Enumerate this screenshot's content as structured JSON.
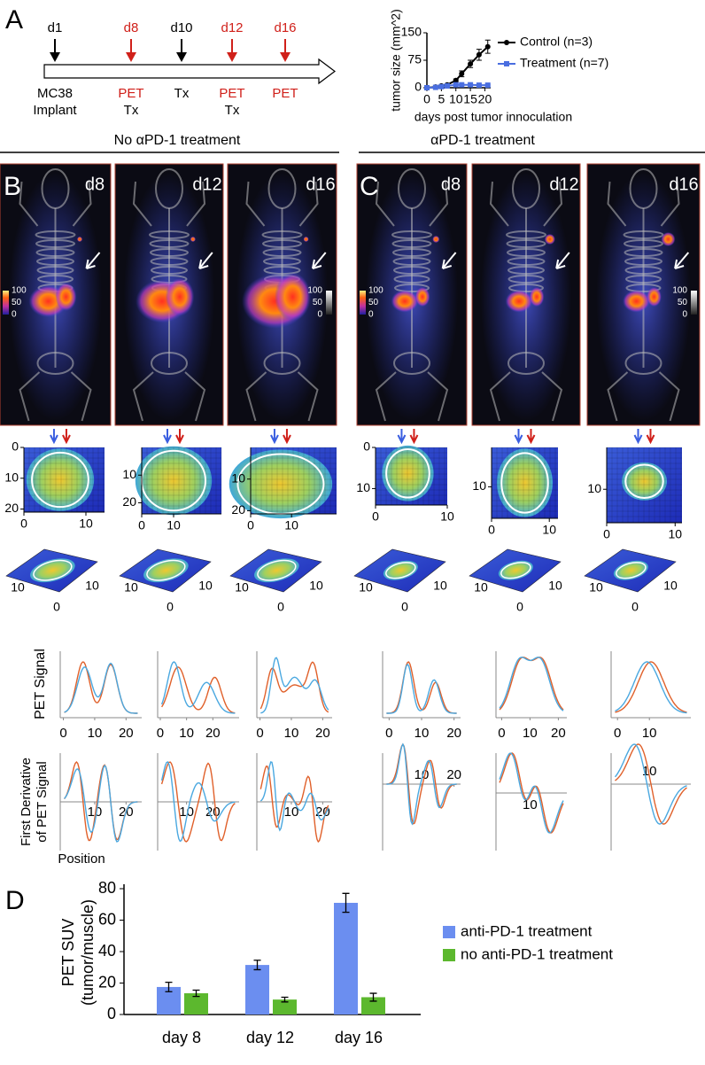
{
  "panel_labels": [
    "A",
    "B",
    "C",
    "D"
  ],
  "timeline": {
    "events": [
      {
        "label": "d1",
        "color": "#000000",
        "below": [
          {
            "text": "MC38",
            "color": "#000000"
          },
          {
            "text": "Implant",
            "color": "#000000"
          }
        ]
      },
      {
        "label": "d8",
        "color": "#d0201a",
        "below": [
          {
            "text": "PET",
            "color": "#d0201a"
          },
          {
            "text": "Tx",
            "color": "#000000"
          }
        ]
      },
      {
        "label": "d10",
        "color": "#000000",
        "below": [
          {
            "text": "Tx",
            "color": "#000000"
          }
        ]
      },
      {
        "label": "d12",
        "color": "#d0201a",
        "below": [
          {
            "text": "PET",
            "color": "#d0201a"
          },
          {
            "text": "Tx",
            "color": "#000000"
          }
        ]
      },
      {
        "label": "d16",
        "color": "#d0201a",
        "below": [
          {
            "text": "PET",
            "color": "#d0201a"
          }
        ]
      }
    ]
  },
  "headers": [
    "No αPD-1 treatment",
    "αPD-1 treatment"
  ],
  "images": {
    "days": [
      "d8",
      "d12",
      "d16"
    ],
    "colorbar_ticks": [
      100,
      50,
      0
    ]
  },
  "surface_ticks": [
    10,
    10,
    0
  ],
  "small_plots": {
    "heatmaps": [
      {
        "xlim": [
          0,
          13
        ],
        "ylim": [
          0,
          21
        ],
        "xticks": [
          0,
          10
        ],
        "yticks": [
          0,
          10,
          20
        ]
      },
      {
        "xlim": [
          0,
          25
        ],
        "ylim": [
          0,
          24
        ],
        "xticks": [
          0,
          10
        ],
        "yticks": [
          10,
          20
        ]
      },
      {
        "xlim": [
          0,
          21
        ],
        "ylim": [
          0,
          21
        ],
        "xticks": [
          0,
          10
        ],
        "yticks": [
          10,
          20
        ]
      },
      {
        "xlim": [
          0,
          10
        ],
        "ylim": [
          0,
          14
        ],
        "xticks": [
          0,
          10
        ],
        "yticks": [
          0,
          10
        ]
      },
      {
        "xlim": [
          0,
          11.5
        ],
        "ylim": [
          0,
          18
        ],
        "xticks": [
          0,
          10
        ],
        "yticks": [
          10
        ]
      },
      {
        "xlim": [
          0,
          11
        ],
        "ylim": [
          0,
          18
        ],
        "xticks": [
          0,
          10
        ],
        "yticks": [
          10
        ]
      }
    ],
    "profiles": [
      {
        "xlim": [
          -1,
          25
        ],
        "xticks": [
          0,
          10,
          20
        ]
      },
      {
        "xlim": [
          -1,
          30
        ],
        "xticks": [
          0,
          10,
          20
        ]
      },
      {
        "xlim": [
          -1,
          23
        ],
        "xticks": [
          0,
          10,
          20
        ]
      },
      {
        "xlim": [
          -2,
          22
        ],
        "xticks": [
          0,
          10,
          20
        ]
      },
      {
        "xlim": [
          -2,
          23
        ],
        "xticks": [
          0,
          10,
          20
        ]
      },
      {
        "xlim": [
          -2,
          23
        ],
        "xticks": [
          0,
          10
        ]
      }
    ],
    "derivatives": [
      {
        "xlim": [
          -1,
          25
        ],
        "xticks": [
          10,
          20
        ]
      },
      {
        "xlim": [
          -1,
          30
        ],
        "xticks": [
          10,
          20
        ]
      },
      {
        "xlim": [
          -1,
          23
        ],
        "xticks": [
          10,
          20
        ]
      },
      {
        "xlim": [
          -2,
          22
        ],
        "xticks": [
          10,
          20
        ]
      },
      {
        "xlim": [
          -2,
          23
        ],
        "xticks": [
          10
        ]
      },
      {
        "xlim": [
          -2,
          23
        ],
        "xticks": [
          10
        ]
      }
    ],
    "profile_ylabel": "PET Signal",
    "derivative_ylabel": [
      "First Derivative",
      "of PET Signal"
    ],
    "derivative_xlabel": "Position"
  },
  "chart_data": [
    {
      "type": "line",
      "ylabel": "tumor size (mm^2)",
      "xlabel": "days post tumor innoculation",
      "x": [
        0,
        3,
        5,
        7,
        10,
        12,
        15,
        18,
        21
      ],
      "series": [
        {
          "name": "Control (n=3)",
          "color": "#000000",
          "values": [
            0,
            2,
            5,
            8,
            20,
            38,
            65,
            90,
            112
          ],
          "errors": [
            0,
            1,
            2,
            3,
            4,
            8,
            10,
            15,
            18
          ]
        },
        {
          "name": "Treatment (n=7)",
          "color": "#4a6ee0",
          "values": [
            0,
            1,
            3,
            5,
            8,
            8,
            8,
            7,
            7
          ],
          "errors": [
            0,
            1,
            1,
            1,
            2,
            2,
            2,
            2,
            2
          ]
        }
      ],
      "xlim": [
        0,
        22
      ],
      "ylim": [
        0,
        150
      ],
      "xticks": [
        0,
        5,
        10,
        15,
        20
      ],
      "yticks": [
        0,
        75,
        150
      ]
    },
    {
      "type": "bar",
      "ylabel": [
        "PET SUV",
        "(tumor/muscle)"
      ],
      "categories": [
        "day 8",
        "day 12",
        "day 16"
      ],
      "series": [
        {
          "name": "anti-PD-1 treatment",
          "color": "#6b8ef0",
          "values": [
            17.5,
            31.5,
            71
          ],
          "errors": [
            3,
            3,
            6
          ]
        },
        {
          "name": "no anti-PD-1 treatment",
          "color": "#5cb82e",
          "values": [
            13.5,
            9.5,
            11
          ],
          "errors": [
            2,
            1.5,
            2.5
          ]
        }
      ],
      "ylim": [
        0,
        80
      ],
      "yticks": [
        0,
        20,
        40,
        60,
        80
      ]
    }
  ]
}
